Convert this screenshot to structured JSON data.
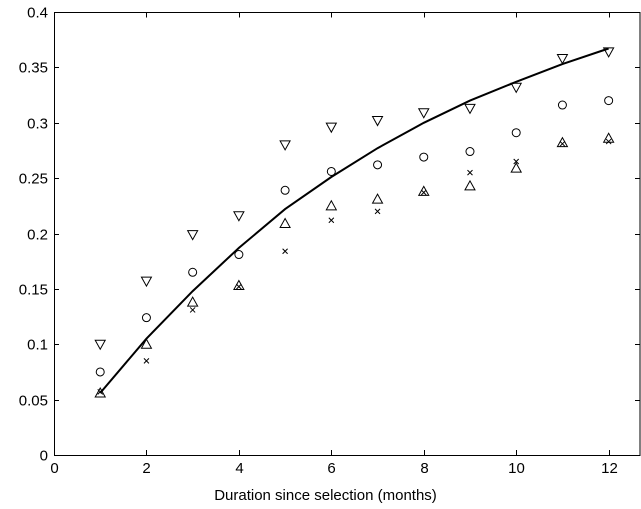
{
  "chart_data": {
    "type": "scatter",
    "title": "",
    "xlabel": "Duration since selection (months)",
    "ylabel": "",
    "xlim": [
      0,
      12.7
    ],
    "ylim": [
      0,
      0.4
    ],
    "xticks": [
      0,
      2,
      4,
      6,
      8,
      10,
      12
    ],
    "yticks": [
      0,
      0.05,
      0.1,
      0.15,
      0.2,
      0.25,
      0.3,
      0.35,
      0.4
    ],
    "xtick_labels": [
      "0",
      "2",
      "4",
      "6",
      "8",
      "10",
      "12"
    ],
    "ytick_labels": [
      "0",
      "0.05",
      "0.1",
      "0.15",
      "0.2",
      "0.25",
      "0.3",
      "0.35",
      "0.4"
    ],
    "grid": false,
    "legend": "none",
    "series": [
      {
        "marker": "line",
        "color": "#000000",
        "x": [
          1,
          2,
          3,
          4,
          5,
          6,
          7,
          8,
          9,
          10,
          11,
          12
        ],
        "y": [
          0.056,
          0.105,
          0.148,
          0.187,
          0.222,
          0.251,
          0.277,
          0.3,
          0.32,
          0.337,
          0.353,
          0.367
        ]
      },
      {
        "marker": "triangle-down",
        "color": "#000000",
        "x": [
          1,
          2,
          3,
          4,
          5,
          6,
          7,
          8,
          9,
          10,
          11,
          12
        ],
        "y": [
          0.1,
          0.157,
          0.199,
          0.216,
          0.28,
          0.296,
          0.302,
          0.309,
          0.313,
          0.332,
          0.358,
          0.364
        ]
      },
      {
        "marker": "circle",
        "color": "#000000",
        "x": [
          1,
          2,
          3,
          4,
          5,
          6,
          7,
          8,
          9,
          10,
          11,
          12
        ],
        "y": [
          0.075,
          0.124,
          0.165,
          0.181,
          0.239,
          0.256,
          0.262,
          0.269,
          0.274,
          0.291,
          0.316,
          0.32
        ]
      },
      {
        "marker": "triangle-up",
        "color": "#000000",
        "x": [
          1,
          2,
          3,
          4,
          5,
          6,
          7,
          8,
          9,
          10,
          11,
          12
        ],
        "y": [
          0.056,
          0.1,
          0.138,
          0.153,
          0.209,
          0.225,
          0.231,
          0.238,
          0.243,
          0.259,
          0.282,
          0.286
        ]
      },
      {
        "marker": "x",
        "color": "#000000",
        "x": [
          1,
          2,
          3,
          4,
          5,
          6,
          7,
          8,
          9,
          10,
          11,
          12
        ],
        "y": [
          0.057,
          0.085,
          0.131,
          0.152,
          0.184,
          0.212,
          0.22,
          0.237,
          0.255,
          0.265,
          0.281,
          0.283
        ]
      }
    ]
  }
}
